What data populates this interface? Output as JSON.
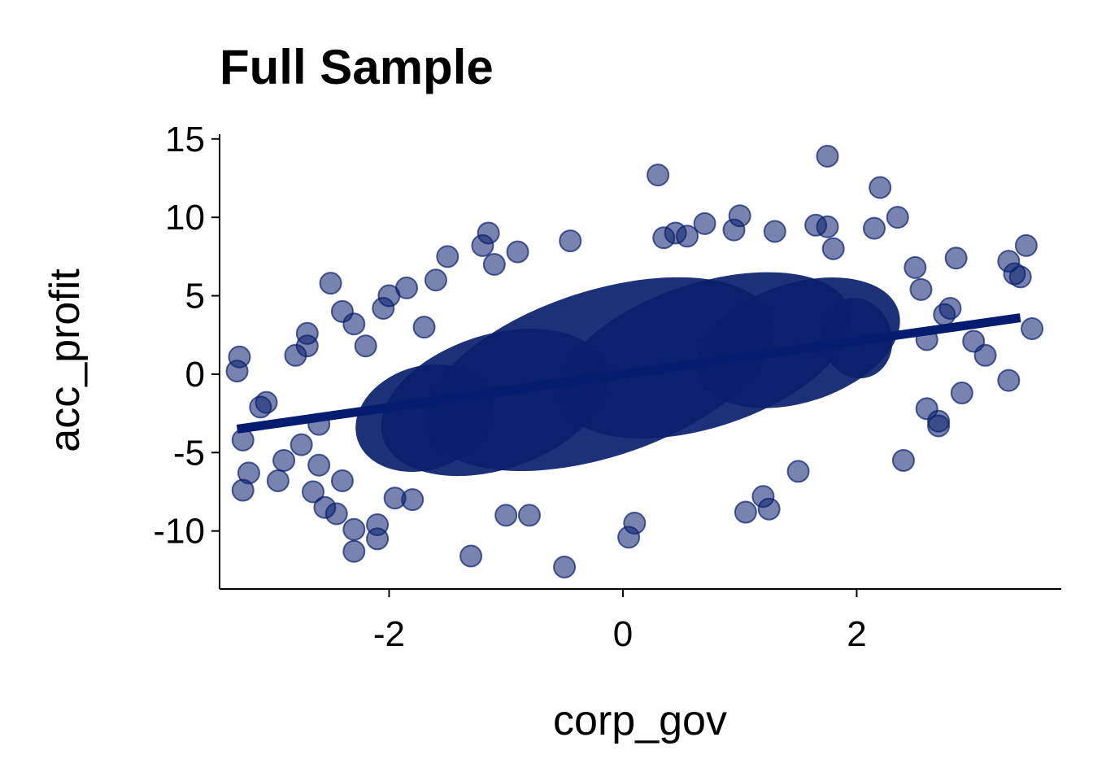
{
  "chart_data": {
    "type": "scatter",
    "title": "Full Sample",
    "xlabel": "corp_gov",
    "ylabel": "acc_profit",
    "xlim": [
      -3.45,
      3.75
    ],
    "ylim": [
      -13.7,
      15.3
    ],
    "xticks": [
      -2,
      0,
      2
    ],
    "xtick_labels": [
      "-2",
      "0",
      "2"
    ],
    "yticks": [
      -10,
      -5,
      0,
      5,
      10,
      15
    ],
    "ytick_labels": [
      "-10",
      "-5",
      "0",
      "5",
      "10",
      "15"
    ],
    "grid": false,
    "point_color": "#0a1f6e",
    "line_color": "#051c70",
    "regression_line": {
      "x": [
        -3.3,
        3.4
      ],
      "y": [
        -3.5,
        3.6
      ]
    },
    "points": {
      "x": [
        -3.3,
        -3.28,
        -3.25,
        -3.25,
        -3.2,
        -3.1,
        -3.05,
        -2.95,
        -2.9,
        -2.8,
        -2.75,
        -2.7,
        -2.65,
        -2.6,
        -2.55,
        -2.5,
        -2.45,
        -2.4,
        -2.3,
        -2.3,
        -2.2,
        -2.1,
        -2.1,
        -2.05,
        -2.0,
        -1.95,
        -1.85,
        -1.7,
        -1.6,
        -1.3,
        -1.2,
        -1.15,
        -1.1,
        -1.0,
        -0.9,
        -0.5,
        -0.45,
        0.05,
        0.1,
        0.3,
        0.35,
        0.45,
        0.55,
        0.7,
        0.95,
        1.0,
        1.05,
        1.25,
        1.3,
        1.5,
        1.65,
        1.75,
        1.75,
        2.15,
        2.2,
        2.35,
        2.55,
        2.6,
        2.7,
        2.7,
        2.75,
        2.8,
        2.85,
        3.0,
        3.1,
        3.3,
        3.3,
        3.35,
        3.4,
        3.45,
        3.5,
        -2.7,
        -2.4,
        -2.6,
        -2.3,
        2.5,
        2.9,
        2.4,
        2.6,
        -1.8,
        -1.5,
        -0.8,
        1.2,
        1.8
      ],
      "y": [
        0.2,
        1.1,
        -4.2,
        -7.4,
        -6.3,
        -2.1,
        -1.8,
        -6.8,
        -5.5,
        1.2,
        -4.5,
        2.6,
        -7.5,
        -3.2,
        -8.5,
        5.8,
        -8.9,
        -6.8,
        -11.3,
        -9.9,
        1.8,
        -10.5,
        -9.6,
        4.2,
        5.0,
        -7.9,
        5.5,
        3.0,
        6.0,
        -11.6,
        8.2,
        9.0,
        7.0,
        -9.0,
        7.8,
        -12.3,
        8.5,
        -10.4,
        -9.5,
        12.7,
        8.7,
        9.0,
        8.8,
        9.6,
        9.2,
        10.1,
        -8.8,
        -8.6,
        9.1,
        -6.2,
        9.5,
        13.9,
        9.4,
        9.3,
        11.9,
        10.0,
        5.4,
        -2.2,
        -3.0,
        -3.3,
        3.8,
        4.2,
        7.4,
        2.1,
        1.2,
        7.2,
        -0.4,
        6.4,
        6.2,
        8.2,
        2.9,
        1.8,
        4.0,
        -5.8,
        3.2,
        6.8,
        -1.2,
        -5.5,
        2.2,
        -8.0,
        7.5,
        -9.0,
        -7.8,
        8.0
      ]
    }
  }
}
